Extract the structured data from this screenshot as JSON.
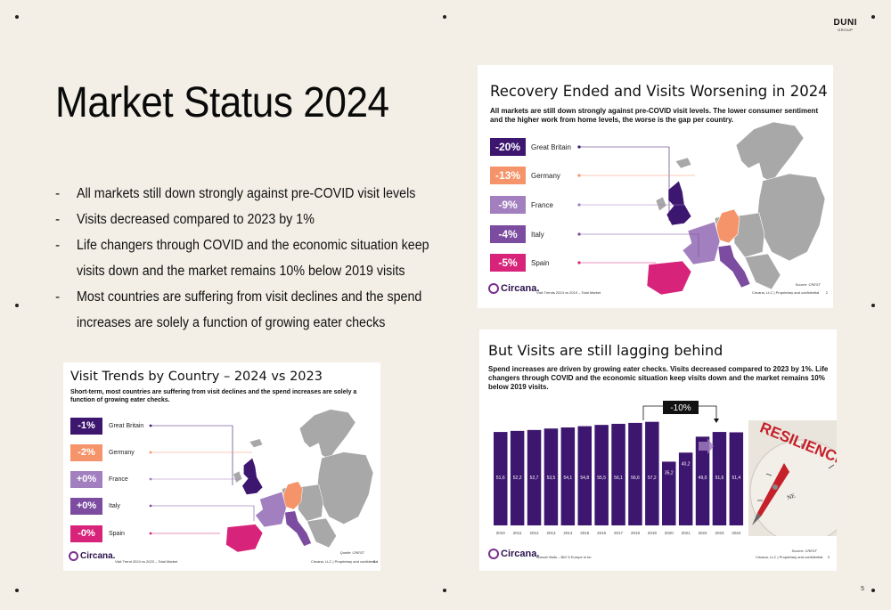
{
  "logo": {
    "line1": "DUNI",
    "line2": "GROUP"
  },
  "page_number": "5",
  "main_title": "Market Status 2024",
  "bullets": [
    {
      "dash": "-",
      "lines": [
        "All markets still down strongly against pre-COVID visit levels"
      ]
    },
    {
      "dash": "-",
      "lines": [
        "Visits decreased compared to 2023 by 1%"
      ]
    },
    {
      "dash": "-",
      "lines": [
        "Life changers through COVID and the economic situation keep",
        "visits down and the market remains 10% below 2019 visits"
      ]
    },
    {
      "dash": "-",
      "lines": [
        "Most countries are suffering from visit declines and the spend",
        "increases are solely a function of growing eater checks"
      ]
    }
  ],
  "slide_recovery": {
    "title": "Recovery Ended and Visits Worsening in 2024",
    "subtitle": "All markets are still down strongly against pre-COVID visit levels. The lower consumer sentiment and the higher work from home levels, the worse is the gap per country.",
    "countries": [
      {
        "value": "-20%",
        "name": "Great Britain",
        "color": "#3d1670"
      },
      {
        "value": "-13%",
        "name": "Germany",
        "color": "#f5946a"
      },
      {
        "value": "-9%",
        "name": "France",
        "color": "#a27fbe"
      },
      {
        "value": "-4%",
        "name": "Italy",
        "color": "#7b4c9f"
      },
      {
        "value": "-5%",
        "name": "Spain",
        "color": "#d8237a"
      }
    ],
    "brand": "Circana.",
    "footer_left": "Visit Trends  2024 vs 2019 – Total Market",
    "footer_right": "Circana, LLC | Proprietary and confidential",
    "page": "2",
    "source": "Source: CREST"
  },
  "slide_country": {
    "title": "Visit Trends by Country – 2024 vs 2023",
    "subtitle": "Short-term, most countries are suffering from visit declines and the spend increases are solely a function of growing eater checks.",
    "countries": [
      {
        "value": "-1%",
        "name": "Great Britain",
        "color": "#3d1670"
      },
      {
        "value": "-2%",
        "name": "Germany",
        "color": "#f5946a"
      },
      {
        "value": "+0%",
        "name": "France",
        "color": "#a27fbe"
      },
      {
        "value": "+0%",
        "name": "Italy",
        "color": "#7b4c9f"
      },
      {
        "value": "-0%",
        "name": "Spain",
        "color": "#d8237a"
      }
    ],
    "brand": "Circana.",
    "footer_left": "Visit Trend 2024 vs 2023 – Total Market",
    "footer_right": "Circana, LLC | Proprietary and confidential",
    "page": "3",
    "source": "Quelle: CREST"
  },
  "slide_lagging": {
    "title": "But Visits are still lagging behind",
    "subtitle": "Spend increases are driven by growing eater checks. Visits decreased compared to 2023 by 1%. Life changers through COVID and the economic situation keep visits down and the market remains 10% below 2019 visits.",
    "callout": "-10%",
    "brand": "Circana.",
    "footer_left": "Annual Visits – BIG 5 Europe in bn",
    "footer_right": "Circana, LLC | Proprietary and confidential",
    "page": "3",
    "source": "Source: CREST",
    "image_text": "RESILIENCE",
    "compass_label": "NE"
  },
  "chart_data": {
    "type": "bar",
    "title": "",
    "xlabel": "",
    "ylabel": "",
    "categories": [
      "2010",
      "2011",
      "2012",
      "2013",
      "2014",
      "2015",
      "2016",
      "2017",
      "2018",
      "2019",
      "2020",
      "2021",
      "2022",
      "2023",
      "2024"
    ],
    "values": [
      51.6,
      52.2,
      52.7,
      53.5,
      54.1,
      54.8,
      55.5,
      56.1,
      56.6,
      57.2,
      35.2,
      40.2,
      49.0,
      51.6,
      51.4
    ],
    "labels": [
      "51,6",
      "52,2",
      "52,7",
      "53,5",
      "54,1",
      "54,8",
      "55,5",
      "56,1",
      "56,6",
      "57,2",
      "35,2",
      "40,2",
      "49,0",
      "51,6",
      "51,4"
    ],
    "ylim": [
      0,
      60
    ],
    "bar_color": "#3d1670",
    "grid": false
  }
}
